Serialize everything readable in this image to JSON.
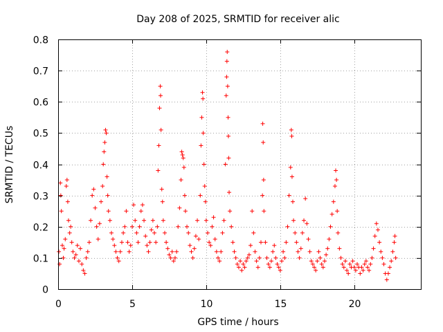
{
  "chart_data": {
    "type": "scatter",
    "title": "Day 208 of 2025, SRMTID for receiver alic",
    "xlabel": "GPS time / hours",
    "ylabel": "SRMTID / TECUs",
    "xlim": [
      0,
      24.5
    ],
    "ylim": [
      0,
      0.8
    ],
    "grid": true,
    "marker": "+",
    "color": "#ff0000",
    "x_ticks": [
      0,
      5,
      10,
      15,
      20
    ],
    "x_tick_labels": [
      "0",
      "5",
      "10",
      "15",
      "20"
    ],
    "y_ticks": [
      0,
      0.1,
      0.2,
      0.3,
      0.4,
      0.5,
      0.6,
      0.7,
      0.8
    ],
    "y_tick_labels": [
      "0",
      "0.1",
      "0.2",
      "0.3",
      "0.4",
      "0.5",
      "0.6",
      "0.7",
      "0.8"
    ],
    "series": [
      {
        "name": "SRMTID",
        "points": [
          [
            0.05,
            0.12
          ],
          [
            0.1,
            0.08
          ],
          [
            0.15,
            0.34
          ],
          [
            0.18,
            0.3
          ],
          [
            0.22,
            0.25
          ],
          [
            0.28,
            0.14
          ],
          [
            0.35,
            0.1
          ],
          [
            0.4,
            0.13
          ],
          [
            0.48,
            0.16
          ],
          [
            0.55,
            0.33
          ],
          [
            0.6,
            0.35
          ],
          [
            0.65,
            0.28
          ],
          [
            0.7,
            0.22
          ],
          [
            0.78,
            0.18
          ],
          [
            0.85,
            0.2
          ],
          [
            0.92,
            0.15
          ],
          [
            1.0,
            0.12
          ],
          [
            1.1,
            0.1
          ],
          [
            1.2,
            0.11
          ],
          [
            1.3,
            0.14
          ],
          [
            1.4,
            0.09
          ],
          [
            1.5,
            0.13
          ],
          [
            1.6,
            0.08
          ],
          [
            1.7,
            0.06
          ],
          [
            1.8,
            0.05
          ],
          [
            1.9,
            0.1
          ],
          [
            2.0,
            0.12
          ],
          [
            2.1,
            0.15
          ],
          [
            2.2,
            0.22
          ],
          [
            2.3,
            0.3
          ],
          [
            2.4,
            0.32
          ],
          [
            2.5,
            0.26
          ],
          [
            2.6,
            0.2
          ],
          [
            2.7,
            0.16
          ],
          [
            2.8,
            0.21
          ],
          [
            2.9,
            0.28
          ],
          [
            3.0,
            0.33
          ],
          [
            3.05,
            0.4
          ],
          [
            3.1,
            0.44
          ],
          [
            3.15,
            0.47
          ],
          [
            3.2,
            0.51
          ],
          [
            3.25,
            0.5
          ],
          [
            3.3,
            0.36
          ],
          [
            3.35,
            0.3
          ],
          [
            3.4,
            0.25
          ],
          [
            3.5,
            0.22
          ],
          [
            3.6,
            0.18
          ],
          [
            3.7,
            0.16
          ],
          [
            3.8,
            0.14
          ],
          [
            3.9,
            0.12
          ],
          [
            4.0,
            0.1
          ],
          [
            4.1,
            0.09
          ],
          [
            4.2,
            0.12
          ],
          [
            4.3,
            0.15
          ],
          [
            4.4,
            0.18
          ],
          [
            4.5,
            0.2
          ],
          [
            4.6,
            0.25
          ],
          [
            4.7,
            0.15
          ],
          [
            4.8,
            0.12
          ],
          [
            4.9,
            0.14
          ],
          [
            5.0,
            0.2
          ],
          [
            5.1,
            0.27
          ],
          [
            5.2,
            0.22
          ],
          [
            5.3,
            0.18
          ],
          [
            5.4,
            0.15
          ],
          [
            5.5,
            0.2
          ],
          [
            5.6,
            0.25
          ],
          [
            5.7,
            0.27
          ],
          [
            5.8,
            0.22
          ],
          [
            5.9,
            0.17
          ],
          [
            6.0,
            0.14
          ],
          [
            6.1,
            0.12
          ],
          [
            6.2,
            0.15
          ],
          [
            6.3,
            0.19
          ],
          [
            6.4,
            0.22
          ],
          [
            6.5,
            0.18
          ],
          [
            6.6,
            0.15
          ],
          [
            6.7,
            0.2
          ],
          [
            6.75,
            0.38
          ],
          [
            6.8,
            0.46
          ],
          [
            6.85,
            0.58
          ],
          [
            6.9,
            0.65
          ],
          [
            6.92,
            0.62
          ],
          [
            6.95,
            0.51
          ],
          [
            7.0,
            0.32
          ],
          [
            7.05,
            0.28
          ],
          [
            7.1,
            0.22
          ],
          [
            7.2,
            0.18
          ],
          [
            7.3,
            0.15
          ],
          [
            7.4,
            0.13
          ],
          [
            7.5,
            0.11
          ],
          [
            7.6,
            0.1
          ],
          [
            7.7,
            0.12
          ],
          [
            7.8,
            0.09
          ],
          [
            7.9,
            0.1
          ],
          [
            8.0,
            0.12
          ],
          [
            8.1,
            0.2
          ],
          [
            8.2,
            0.26
          ],
          [
            8.3,
            0.35
          ],
          [
            8.35,
            0.44
          ],
          [
            8.4,
            0.43
          ],
          [
            8.45,
            0.42
          ],
          [
            8.5,
            0.39
          ],
          [
            8.55,
            0.3
          ],
          [
            8.6,
            0.25
          ],
          [
            8.7,
            0.2
          ],
          [
            8.8,
            0.18
          ],
          [
            8.9,
            0.14
          ],
          [
            9.0,
            0.12
          ],
          [
            9.1,
            0.1
          ],
          [
            9.2,
            0.13
          ],
          [
            9.3,
            0.17
          ],
          [
            9.4,
            0.22
          ],
          [
            9.5,
            0.16
          ],
          [
            9.6,
            0.3
          ],
          [
            9.65,
            0.46
          ],
          [
            9.7,
            0.55
          ],
          [
            9.75,
            0.63
          ],
          [
            9.78,
            0.61
          ],
          [
            9.8,
            0.5
          ],
          [
            9.85,
            0.4
          ],
          [
            9.9,
            0.33
          ],
          [
            9.95,
            0.28
          ],
          [
            10.0,
            0.22
          ],
          [
            10.1,
            0.18
          ],
          [
            10.2,
            0.15
          ],
          [
            10.3,
            0.14
          ],
          [
            10.4,
            0.2
          ],
          [
            10.5,
            0.23
          ],
          [
            10.6,
            0.16
          ],
          [
            10.7,
            0.12
          ],
          [
            10.8,
            0.1
          ],
          [
            10.9,
            0.09
          ],
          [
            11.0,
            0.12
          ],
          [
            11.1,
            0.18
          ],
          [
            11.2,
            0.22
          ],
          [
            11.3,
            0.4
          ],
          [
            11.35,
            0.62
          ],
          [
            11.38,
            0.68
          ],
          [
            11.4,
            0.73
          ],
          [
            11.42,
            0.76
          ],
          [
            11.45,
            0.65
          ],
          [
            11.48,
            0.55
          ],
          [
            11.5,
            0.49
          ],
          [
            11.52,
            0.42
          ],
          [
            11.55,
            0.31
          ],
          [
            11.6,
            0.25
          ],
          [
            11.7,
            0.2
          ],
          [
            11.8,
            0.15
          ],
          [
            11.9,
            0.12
          ],
          [
            12.0,
            0.1
          ],
          [
            12.1,
            0.08
          ],
          [
            12.2,
            0.07
          ],
          [
            12.3,
            0.09
          ],
          [
            12.4,
            0.06
          ],
          [
            12.5,
            0.08
          ],
          [
            12.6,
            0.07
          ],
          [
            12.7,
            0.09
          ],
          [
            12.8,
            0.1
          ],
          [
            12.9,
            0.11
          ],
          [
            13.0,
            0.14
          ],
          [
            13.1,
            0.25
          ],
          [
            13.2,
            0.18
          ],
          [
            13.3,
            0.12
          ],
          [
            13.4,
            0.09
          ],
          [
            13.5,
            0.07
          ],
          [
            13.6,
            0.1
          ],
          [
            13.7,
            0.15
          ],
          [
            13.8,
            0.3
          ],
          [
            13.82,
            0.53
          ],
          [
            13.85,
            0.47
          ],
          [
            13.88,
            0.35
          ],
          [
            13.9,
            0.25
          ],
          [
            14.0,
            0.15
          ],
          [
            14.1,
            0.1
          ],
          [
            14.2,
            0.08
          ],
          [
            14.3,
            0.07
          ],
          [
            14.4,
            0.09
          ],
          [
            14.5,
            0.12
          ],
          [
            14.6,
            0.14
          ],
          [
            14.7,
            0.1
          ],
          [
            14.8,
            0.08
          ],
          [
            14.9,
            0.07
          ],
          [
            15.0,
            0.06
          ],
          [
            15.1,
            0.09
          ],
          [
            15.2,
            0.12
          ],
          [
            15.3,
            0.1
          ],
          [
            15.4,
            0.15
          ],
          [
            15.5,
            0.2
          ],
          [
            15.6,
            0.3
          ],
          [
            15.7,
            0.39
          ],
          [
            15.75,
            0.51
          ],
          [
            15.78,
            0.49
          ],
          [
            15.8,
            0.36
          ],
          [
            15.85,
            0.28
          ],
          [
            15.9,
            0.22
          ],
          [
            16.0,
            0.18
          ],
          [
            16.1,
            0.15
          ],
          [
            16.2,
            0.12
          ],
          [
            16.3,
            0.1
          ],
          [
            16.4,
            0.13
          ],
          [
            16.5,
            0.18
          ],
          [
            16.6,
            0.22
          ],
          [
            16.7,
            0.29
          ],
          [
            16.8,
            0.21
          ],
          [
            16.9,
            0.16
          ],
          [
            17.0,
            0.12
          ],
          [
            17.1,
            0.09
          ],
          [
            17.2,
            0.08
          ],
          [
            17.3,
            0.07
          ],
          [
            17.4,
            0.06
          ],
          [
            17.5,
            0.09
          ],
          [
            17.6,
            0.12
          ],
          [
            17.7,
            0.1
          ],
          [
            17.8,
            0.08
          ],
          [
            17.9,
            0.07
          ],
          [
            18.0,
            0.09
          ],
          [
            18.1,
            0.11
          ],
          [
            18.2,
            0.13
          ],
          [
            18.3,
            0.16
          ],
          [
            18.4,
            0.2
          ],
          [
            18.5,
            0.24
          ],
          [
            18.6,
            0.28
          ],
          [
            18.7,
            0.33
          ],
          [
            18.75,
            0.38
          ],
          [
            18.8,
            0.35
          ],
          [
            18.85,
            0.25
          ],
          [
            18.9,
            0.18
          ],
          [
            19.0,
            0.13
          ],
          [
            19.1,
            0.1
          ],
          [
            19.2,
            0.08
          ],
          [
            19.3,
            0.07
          ],
          [
            19.4,
            0.09
          ],
          [
            19.5,
            0.06
          ],
          [
            19.6,
            0.05
          ],
          [
            19.7,
            0.08
          ],
          [
            19.8,
            0.07
          ],
          [
            19.9,
            0.09
          ],
          [
            20.0,
            0.07
          ],
          [
            20.1,
            0.06
          ],
          [
            20.2,
            0.08
          ],
          [
            20.3,
            0.07
          ],
          [
            20.4,
            0.05
          ],
          [
            20.5,
            0.07
          ],
          [
            20.6,
            0.06
          ],
          [
            20.7,
            0.08
          ],
          [
            20.8,
            0.09
          ],
          [
            20.9,
            0.07
          ],
          [
            21.0,
            0.06
          ],
          [
            21.1,
            0.08
          ],
          [
            21.2,
            0.1
          ],
          [
            21.3,
            0.13
          ],
          [
            21.4,
            0.17
          ],
          [
            21.5,
            0.21
          ],
          [
            21.6,
            0.19
          ],
          [
            21.7,
            0.15
          ],
          [
            21.8,
            0.12
          ],
          [
            21.9,
            0.1
          ],
          [
            22.0,
            0.08
          ],
          [
            22.1,
            0.05
          ],
          [
            22.2,
            0.03
          ],
          [
            22.3,
            0.05
          ],
          [
            22.4,
            0.07
          ],
          [
            22.5,
            0.09
          ],
          [
            22.6,
            0.12
          ],
          [
            22.7,
            0.15
          ],
          [
            22.75,
            0.17
          ],
          [
            22.8,
            0.1
          ]
        ]
      }
    ]
  }
}
